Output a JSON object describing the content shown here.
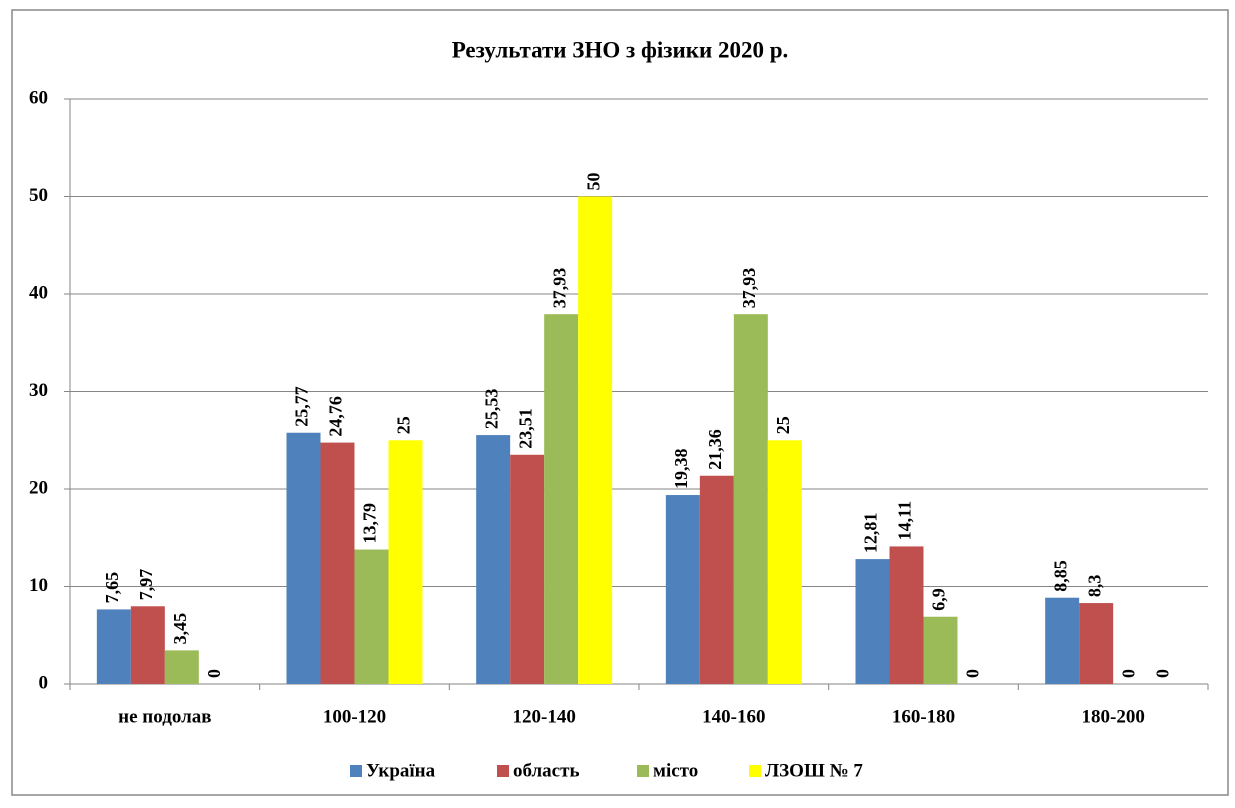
{
  "chart_data": {
    "type": "bar",
    "title": "Результати ЗНО з фізики 2020 р.",
    "categories": [
      "не подолав",
      "100-120",
      "120-140",
      "140-160",
      "160-180",
      "180-200"
    ],
    "series": [
      {
        "name": "Україна",
        "color": "#4f81bd",
        "values": [
          7.65,
          25.77,
          25.53,
          19.38,
          12.81,
          8.85
        ],
        "value_labels": [
          "7,65",
          "25,77",
          "25,53",
          "19,38",
          "12,81",
          "8,85"
        ]
      },
      {
        "name": "область",
        "color": "#c0504d",
        "values": [
          7.97,
          24.76,
          23.51,
          21.36,
          14.11,
          8.3
        ],
        "value_labels": [
          "7,97",
          "24,76",
          "23,51",
          "21,36",
          "14,11",
          "8,3"
        ]
      },
      {
        "name": "місто",
        "color": "#9bbb59",
        "values": [
          3.45,
          13.79,
          37.93,
          37.93,
          6.9,
          0
        ],
        "value_labels": [
          "3,45",
          "13,79",
          "37,93",
          "37,93",
          "6,9",
          "0"
        ]
      },
      {
        "name": "ЛЗОШ № 7",
        "color": "#ffff00",
        "values": [
          0,
          25,
          50,
          25,
          0,
          0
        ],
        "value_labels": [
          "0",
          "25",
          "50",
          "25",
          "0",
          "0"
        ]
      }
    ],
    "ylim": [
      0,
      60
    ],
    "yticks": [
      0,
      10,
      20,
      30,
      40,
      50,
      60
    ],
    "grid": true,
    "legend": "bottom"
  }
}
